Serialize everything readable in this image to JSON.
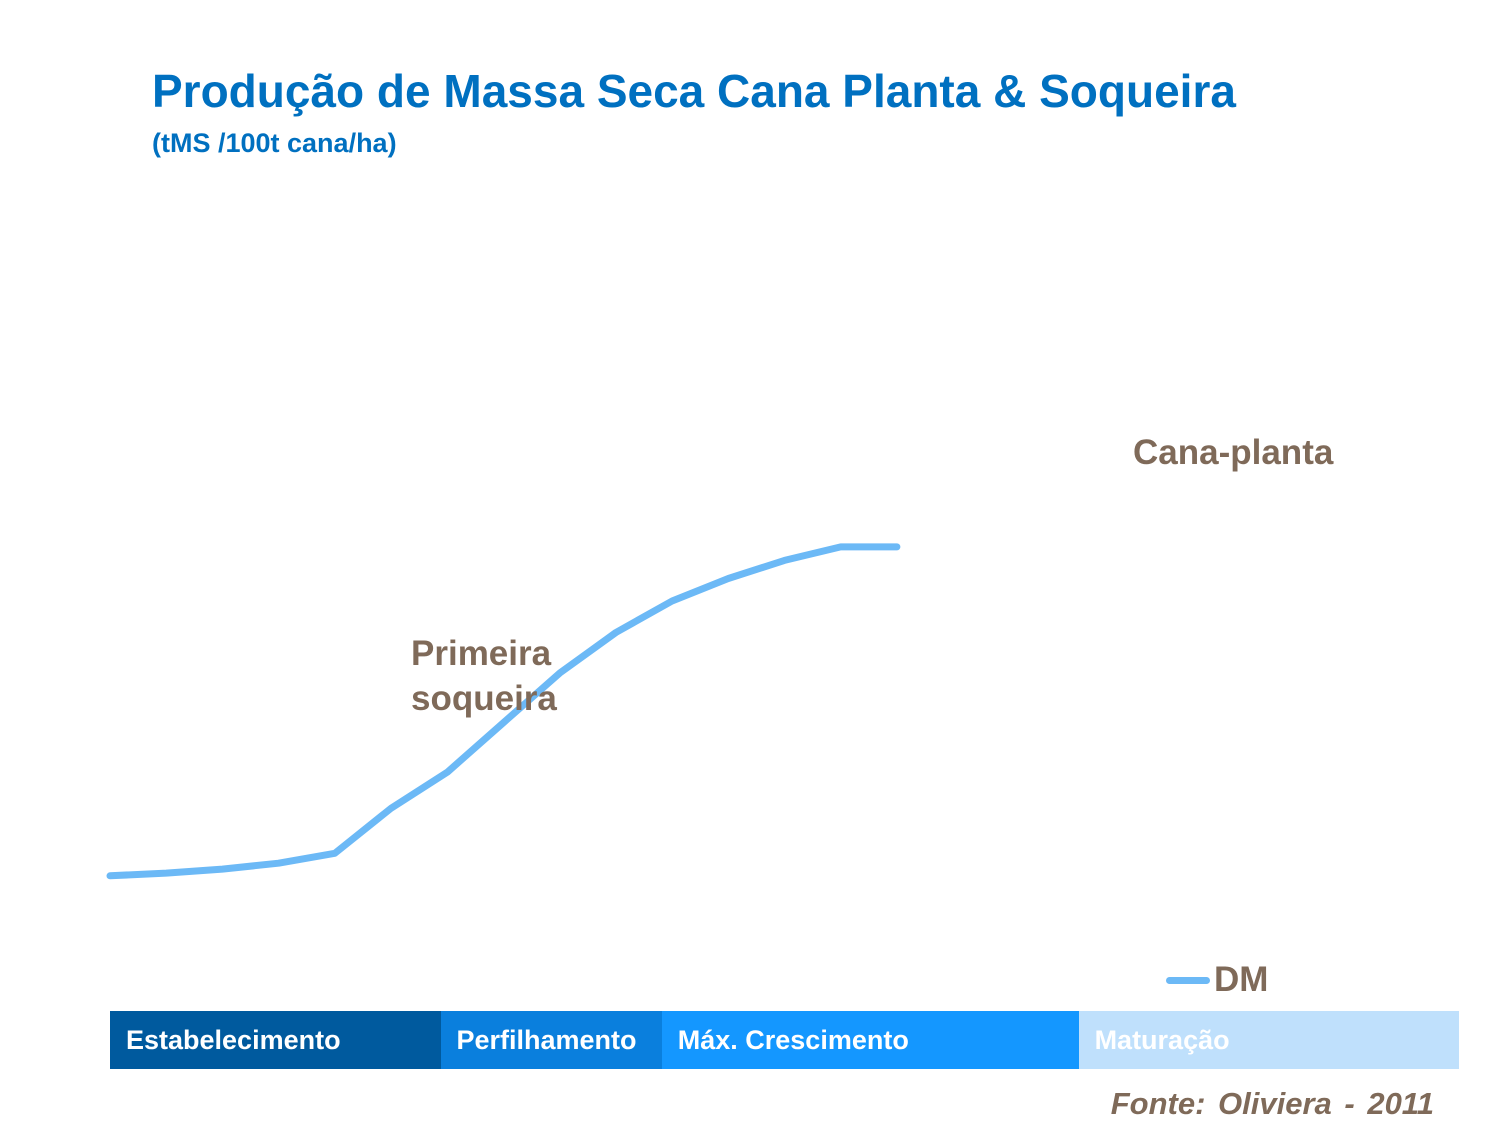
{
  "title": "Produção de Massa Seca Cana Planta & Soqueira",
  "subtitle": "(tMS /100t cana/ha)",
  "annotations": {
    "cana_planta": "Cana-planta",
    "primeira_soqueira_line1": "Primeira",
    "primeira_soqueira_line2": "soqueira"
  },
  "legend": {
    "label": "DM",
    "color": "#6CB9F6"
  },
  "stages": [
    {
      "label": "Estabelecimento",
      "color": "#005A9E",
      "fraction": 0.245
    },
    {
      "label": "Perfilhamento",
      "color": "#0A7FDD",
      "fraction": 0.164
    },
    {
      "label": "Máx. Crescimento",
      "color": "#1497FF",
      "fraction": 0.309
    },
    {
      "label": "Maturação",
      "color": "#BFE0FC",
      "fraction": 0.282
    }
  ],
  "source": "Fonte: Oliviera - 2011",
  "chart_data": {
    "type": "line",
    "title": "Produção de Massa Seca Cana Planta & Soqueira",
    "subtitle": "(tMS /100t cana/ha)",
    "xlabel": "",
    "ylabel": "",
    "grid": false,
    "axes_visible": false,
    "legend_position": "bottom-right",
    "x": [
      0,
      0.5,
      1,
      1.5,
      2,
      2.5,
      3,
      3.5,
      4,
      4.5,
      5,
      5.5,
      6,
      6.5,
      7
    ],
    "series": [
      {
        "name": "DM",
        "color": "#6CB9F6",
        "values": [
          0,
          0.6,
          1.5,
          2.8,
          5.0,
          15.0,
          23.0,
          34.0,
          45.0,
          54.0,
          61.0,
          66.0,
          70.0,
          73.0,
          73.0
        ]
      }
    ],
    "ylim": [
      -30,
      150
    ],
    "xlim": [
      0,
      12
    ]
  }
}
